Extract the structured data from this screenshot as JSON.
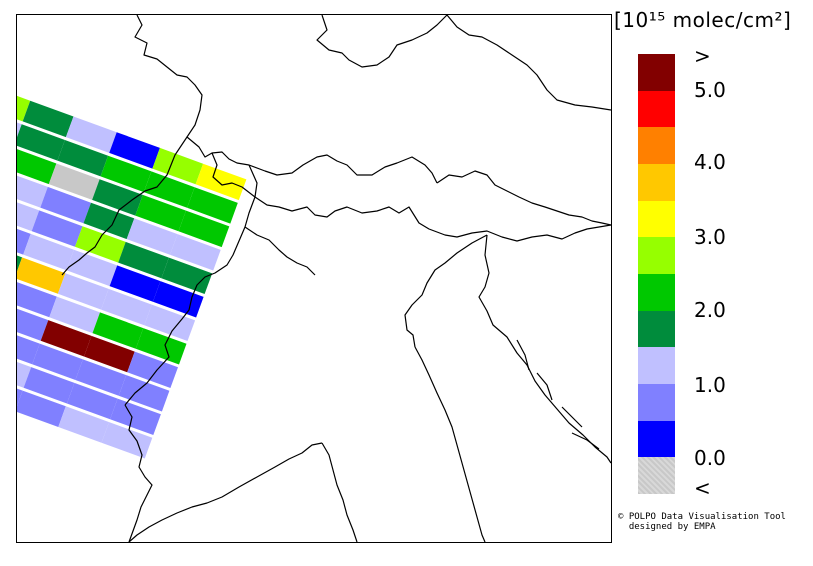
{
  "legend": {
    "unit": "[10¹⁵ molec/cm²]",
    "colors": [
      "#c8c8c8",
      "#0000ff",
      "#8080ff",
      "#c0c0ff",
      "#008c3c",
      "#00c800",
      "#96ff00",
      "#ffff00",
      "#ffc800",
      "#ff8000",
      "#ff0000",
      "#820000"
    ],
    "labels": [
      ">",
      "5.0",
      "4.0",
      "3.0",
      "2.0",
      "1.0",
      "0.0",
      "<"
    ]
  },
  "credit": {
    "line1": "© POLPO Data Visualisation Tool",
    "line2": "designed by EMPA"
  },
  "swath": {
    "note_colors_index": "cells listed row by row, values are legend color indices",
    "rows": [
      [
        6,
        4,
        3,
        1,
        6,
        7
      ],
      [
        3,
        4,
        4,
        5,
        5,
        5
      ],
      [
        1,
        5,
        0,
        4,
        5,
        5
      ],
      [
        6,
        3,
        2,
        4,
        3,
        3
      ],
      [
        3,
        3,
        2,
        6,
        4,
        4
      ],
      [
        1,
        2,
        3,
        3,
        1,
        1
      ],
      [
        1,
        4,
        8,
        3,
        3,
        3
      ],
      [
        11,
        2,
        2,
        3,
        5,
        5
      ],
      [
        11,
        5,
        2,
        11,
        11,
        2
      ],
      [
        1,
        1,
        2,
        2,
        2,
        2
      ],
      [
        4,
        3,
        3,
        2,
        2,
        2
      ],
      [
        3,
        2,
        2,
        2,
        3,
        3
      ]
    ]
  }
}
